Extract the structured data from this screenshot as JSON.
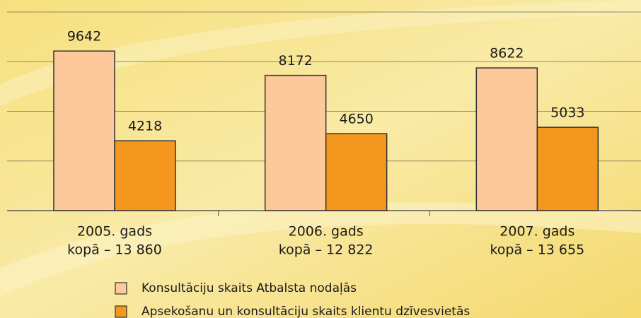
{
  "chart_data": {
    "type": "bar",
    "categories": [
      "2005. gads",
      "2006. gads",
      "2007. gads"
    ],
    "category_totals": [
      "kopā – 13 860",
      "kopā – 12 822",
      "kopā – 13 655"
    ],
    "series": [
      {
        "name": "Konsultāciju skaits Atbalsta nodaļās",
        "color": "#fdc99b",
        "values": [
          9642,
          8172,
          8622
        ]
      },
      {
        "name": "Apsekošanu un konsultāciju skaits klientu dzīvesvietās",
        "color": "#f5961e",
        "values": [
          4218,
          4650,
          5033
        ]
      }
    ],
    "ylim": [
      0,
      12000
    ],
    "yticks": [
      0,
      3000,
      6000,
      9000,
      12000
    ],
    "grid": true
  }
}
